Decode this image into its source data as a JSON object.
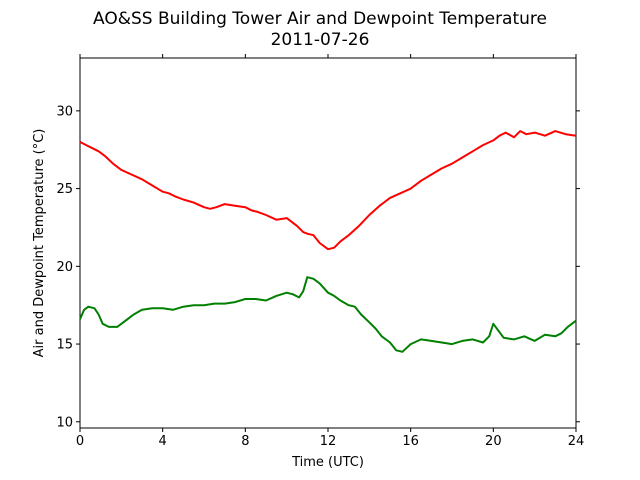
{
  "chart_data": {
    "type": "line",
    "title": "AO&SS Building Tower Air and Dewpoint Temperature",
    "subtitle": "2011-07-26",
    "xlabel": "Time (UTC)",
    "ylabel": "Air and Dewpoint Temperature (°C)",
    "xlim": [
      0,
      24
    ],
    "ylim": [
      9.6,
      33.4
    ],
    "xticks": [
      0,
      4,
      8,
      12,
      16,
      20,
      24
    ],
    "yticks": [
      10,
      15,
      20,
      25,
      30
    ],
    "grid": false,
    "legend": "none",
    "series": [
      {
        "color": "#ff0000",
        "x": [
          0,
          0.3,
          0.6,
          0.9,
          1.2,
          1.6,
          2.0,
          2.5,
          3.0,
          3.5,
          4.0,
          4.3,
          4.6,
          5.0,
          5.5,
          6.0,
          6.3,
          6.6,
          7.0,
          7.5,
          8.0,
          8.3,
          8.6,
          9.0,
          9.5,
          10.0,
          10.2,
          10.5,
          10.8,
          11.0,
          11.3,
          11.6,
          12.0,
          12.3,
          12.6,
          13.0,
          13.5,
          14.0,
          14.5,
          15.0,
          15.5,
          16.0,
          16.5,
          17.0,
          17.5,
          18.0,
          18.5,
          19.0,
          19.5,
          20.0,
          20.3,
          20.6,
          21.0,
          21.3,
          21.6,
          22.0,
          22.5,
          23.0,
          23.5,
          24.0
        ],
        "values": [
          28.0,
          27.8,
          27.6,
          27.4,
          27.1,
          26.6,
          26.2,
          25.9,
          25.6,
          25.2,
          24.8,
          24.7,
          24.5,
          24.3,
          24.1,
          23.8,
          23.7,
          23.8,
          24.0,
          23.9,
          23.8,
          23.6,
          23.5,
          23.3,
          23.0,
          23.1,
          22.9,
          22.6,
          22.2,
          22.1,
          22.0,
          21.5,
          21.1,
          21.2,
          21.6,
          22.0,
          22.6,
          23.3,
          23.9,
          24.4,
          24.7,
          25.0,
          25.5,
          25.9,
          26.3,
          26.6,
          27.0,
          27.4,
          27.8,
          28.1,
          28.4,
          28.6,
          28.3,
          28.7,
          28.5,
          28.6,
          28.4,
          28.7,
          28.5,
          28.4
        ]
      },
      {
        "color": "#008000",
        "x": [
          0,
          0.2,
          0.4,
          0.7,
          0.9,
          1.1,
          1.4,
          1.8,
          2.2,
          2.6,
          3.0,
          3.5,
          4.0,
          4.5,
          5.0,
          5.5,
          6.0,
          6.5,
          7.0,
          7.5,
          8.0,
          8.5,
          9.0,
          9.5,
          10.0,
          10.3,
          10.6,
          10.8,
          11.0,
          11.3,
          11.6,
          12.0,
          12.3,
          12.6,
          13.0,
          13.3,
          13.6,
          14.0,
          14.3,
          14.6,
          15.0,
          15.3,
          15.6,
          16.0,
          16.5,
          17.0,
          17.5,
          18.0,
          18.5,
          19.0,
          19.5,
          19.8,
          20.0,
          20.5,
          21.0,
          21.5,
          22.0,
          22.5,
          23.0,
          23.3,
          23.6,
          24.0
        ],
        "values": [
          16.6,
          17.2,
          17.4,
          17.3,
          16.9,
          16.3,
          16.1,
          16.1,
          16.5,
          16.9,
          17.2,
          17.3,
          17.3,
          17.2,
          17.4,
          17.5,
          17.5,
          17.6,
          17.6,
          17.7,
          17.9,
          17.9,
          17.8,
          18.1,
          18.3,
          18.2,
          18.0,
          18.4,
          19.3,
          19.2,
          18.9,
          18.3,
          18.1,
          17.8,
          17.5,
          17.4,
          16.9,
          16.4,
          16.0,
          15.5,
          15.1,
          14.6,
          14.5,
          15.0,
          15.3,
          15.2,
          15.1,
          15.0,
          15.2,
          15.3,
          15.1,
          15.5,
          16.3,
          15.4,
          15.3,
          15.5,
          15.2,
          15.6,
          15.5,
          15.7,
          16.1,
          16.5
        ]
      }
    ]
  }
}
